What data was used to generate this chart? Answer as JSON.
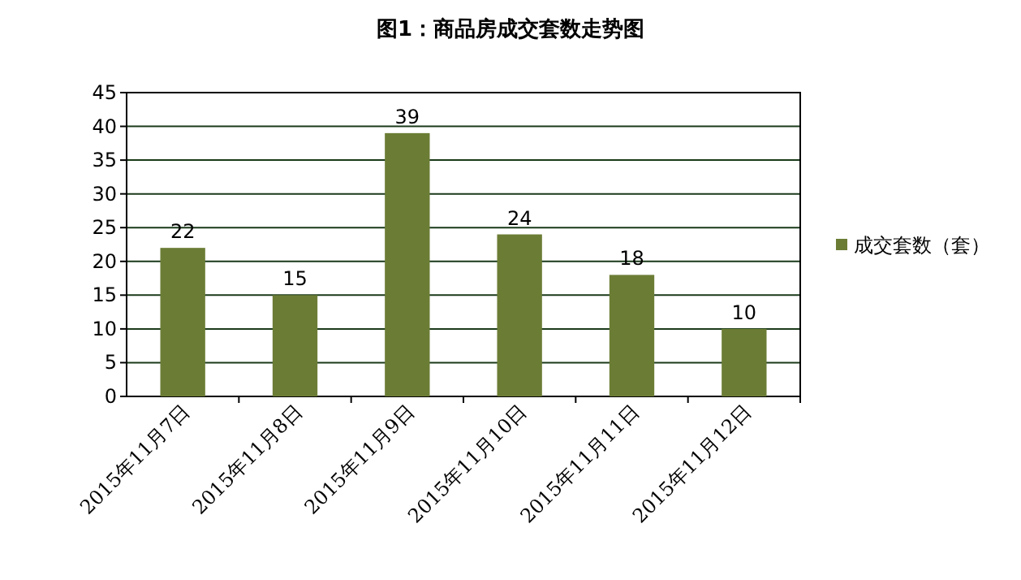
{
  "chart_data": {
    "type": "bar",
    "title": "图1：商品房成交套数走势图",
    "categories": [
      "2015年11月7日",
      "2015年11月8日",
      "2015年11月9日",
      "2015年11月10日",
      "2015年11月11日",
      "2015年11月12日"
    ],
    "series": [
      {
        "name": "成交套数（套）",
        "color": "#6b7d35",
        "values": [
          22,
          15,
          39,
          24,
          18,
          10
        ]
      }
    ],
    "ylim": [
      0,
      45
    ],
    "yticks": [
      0,
      5,
      10,
      15,
      20,
      25,
      30,
      35,
      40,
      45
    ],
    "grid": "y",
    "legend": "right",
    "data_labels": true
  }
}
